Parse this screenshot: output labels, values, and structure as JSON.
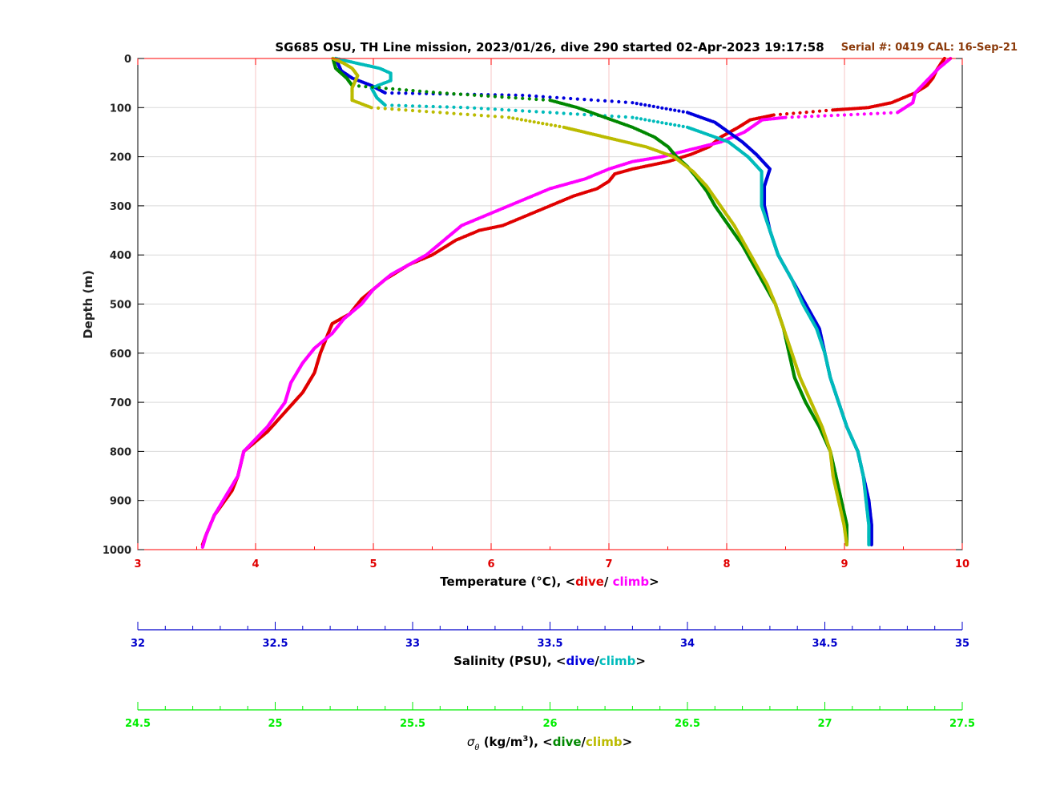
{
  "chart_data": {
    "type": "line",
    "title": "SG685 OSU, TH Line mission, 2023/01/26, dive 290 started 02-Apr-2023 19:17:58",
    "serial_label": "Serial #: 0419  CAL: 16-Sep-21",
    "ylabel": "Depth (m)",
    "ylim": [
      0,
      1000
    ],
    "y_ticks": [
      "0",
      "100",
      "200",
      "300",
      "400",
      "500",
      "600",
      "700",
      "800",
      "900",
      "1000"
    ],
    "grid": true,
    "axes": {
      "temperature": {
        "label": "Temperature (°C), <",
        "dive_label": "dive",
        "sep": "/ ",
        "climb_label": "climb",
        "close": ">",
        "range": [
          3,
          10
        ],
        "ticks": [
          "3",
          "4",
          "5",
          "6",
          "7",
          "8",
          "9",
          "10"
        ],
        "color": "#ff0000"
      },
      "salinity": {
        "label": "Salinity (PSU), <",
        "dive_label": "dive",
        "sep": "/",
        "climb_label": "climb",
        "close": ">",
        "range": [
          32,
          35
        ],
        "ticks": [
          "32",
          "32.5",
          "33",
          "33.5",
          "34",
          "34.5",
          "35"
        ],
        "color": "#0000cc"
      },
      "density": {
        "label_symbol": "σ",
        "label_sub": "θ",
        "label": " (kg/m",
        "label_sup": "3",
        "label_rest": "), <",
        "dive_label": "dive",
        "sep": "/",
        "climb_label": "climb",
        "close": ">",
        "range": [
          24.5,
          27.5
        ],
        "ticks": [
          "24.5",
          "25",
          "25.5",
          "26",
          "26.5",
          "27",
          "27.5"
        ],
        "color": "#00ee00"
      }
    },
    "series": [
      {
        "name": "Temperature dive",
        "axis": "temperature",
        "color": "#e00000",
        "points": [
          [
            9.85,
            0
          ],
          [
            9.82,
            10
          ],
          [
            9.78,
            25
          ],
          [
            9.75,
            40
          ],
          [
            9.7,
            55
          ],
          [
            9.6,
            70
          ],
          [
            9.4,
            90
          ],
          [
            9.2,
            100
          ],
          [
            8.9,
            105
          ],
          [
            8.4,
            115
          ],
          [
            8.2,
            125
          ],
          [
            8.1,
            140
          ],
          [
            7.95,
            160
          ],
          [
            7.85,
            180
          ],
          [
            7.7,
            195
          ],
          [
            7.5,
            210
          ],
          [
            7.2,
            225
          ],
          [
            7.05,
            235
          ],
          [
            7.0,
            250
          ],
          [
            6.9,
            265
          ],
          [
            6.7,
            280
          ],
          [
            6.5,
            300
          ],
          [
            6.3,
            320
          ],
          [
            6.1,
            340
          ],
          [
            5.9,
            350
          ],
          [
            5.7,
            370
          ],
          [
            5.5,
            400
          ],
          [
            5.3,
            420
          ],
          [
            5.1,
            450
          ],
          [
            4.9,
            490
          ],
          [
            4.8,
            520
          ],
          [
            4.65,
            540
          ],
          [
            4.6,
            570
          ],
          [
            4.55,
            600
          ],
          [
            4.5,
            640
          ],
          [
            4.4,
            680
          ],
          [
            4.25,
            720
          ],
          [
            4.1,
            760
          ],
          [
            3.9,
            800
          ],
          [
            3.85,
            850
          ],
          [
            3.8,
            880
          ],
          [
            3.65,
            930
          ],
          [
            3.58,
            970
          ],
          [
            3.55,
            990
          ]
        ]
      },
      {
        "name": "Temperature climb",
        "axis": "temperature",
        "color": "#ff00ff",
        "points": [
          [
            9.9,
            0
          ],
          [
            9.8,
            20
          ],
          [
            9.7,
            45
          ],
          [
            9.6,
            70
          ],
          [
            9.58,
            90
          ],
          [
            9.45,
            110
          ],
          [
            9.0,
            115
          ],
          [
            8.5,
            120
          ],
          [
            8.3,
            125
          ],
          [
            8.15,
            150
          ],
          [
            7.95,
            170
          ],
          [
            7.7,
            185
          ],
          [
            7.45,
            200
          ],
          [
            7.2,
            210
          ],
          [
            7.0,
            225
          ],
          [
            6.8,
            245
          ],
          [
            6.5,
            265
          ],
          [
            6.3,
            285
          ],
          [
            6.1,
            305
          ],
          [
            5.9,
            325
          ],
          [
            5.75,
            340
          ],
          [
            5.6,
            370
          ],
          [
            5.45,
            400
          ],
          [
            5.3,
            420
          ],
          [
            5.15,
            440
          ],
          [
            5.0,
            470
          ],
          [
            4.9,
            500
          ],
          [
            4.75,
            530
          ],
          [
            4.65,
            560
          ],
          [
            4.5,
            590
          ],
          [
            4.4,
            620
          ],
          [
            4.3,
            660
          ],
          [
            4.25,
            700
          ],
          [
            4.1,
            750
          ],
          [
            3.9,
            800
          ],
          [
            3.85,
            850
          ],
          [
            3.75,
            890
          ],
          [
            3.65,
            930
          ],
          [
            3.58,
            970
          ],
          [
            3.55,
            995
          ]
        ]
      },
      {
        "name": "Salinity dive",
        "axis": "salinity",
        "color": "#0000dd",
        "points": [
          [
            32.72,
            0
          ],
          [
            32.74,
            25
          ],
          [
            32.78,
            40
          ],
          [
            32.85,
            55
          ],
          [
            32.9,
            70
          ],
          [
            33.4,
            75
          ],
          [
            33.8,
            90
          ],
          [
            34.0,
            110
          ],
          [
            34.1,
            130
          ],
          [
            34.15,
            150
          ],
          [
            34.2,
            170
          ],
          [
            34.25,
            195
          ],
          [
            34.3,
            225
          ],
          [
            34.28,
            260
          ],
          [
            34.28,
            300
          ],
          [
            34.3,
            350
          ],
          [
            34.33,
            400
          ],
          [
            34.38,
            450
          ],
          [
            34.43,
            500
          ],
          [
            34.48,
            550
          ],
          [
            34.5,
            600
          ],
          [
            34.52,
            650
          ],
          [
            34.55,
            700
          ],
          [
            34.58,
            750
          ],
          [
            34.62,
            800
          ],
          [
            34.64,
            850
          ],
          [
            34.66,
            900
          ],
          [
            34.67,
            950
          ],
          [
            34.67,
            990
          ]
        ]
      },
      {
        "name": "Salinity climb",
        "axis": "salinity",
        "color": "#00bbbb",
        "points": [
          [
            32.72,
            0
          ],
          [
            32.8,
            10
          ],
          [
            32.88,
            20
          ],
          [
            32.92,
            30
          ],
          [
            32.92,
            45
          ],
          [
            32.85,
            60
          ],
          [
            32.87,
            80
          ],
          [
            32.9,
            95
          ],
          [
            33.2,
            100
          ],
          [
            33.5,
            110
          ],
          [
            33.8,
            120
          ],
          [
            34.0,
            140
          ],
          [
            34.15,
            170
          ],
          [
            34.22,
            200
          ],
          [
            34.27,
            230
          ],
          [
            34.27,
            260
          ],
          [
            34.27,
            300
          ],
          [
            34.3,
            350
          ],
          [
            34.33,
            400
          ],
          [
            34.38,
            450
          ],
          [
            34.42,
            500
          ],
          [
            34.47,
            550
          ],
          [
            34.5,
            600
          ],
          [
            34.52,
            650
          ],
          [
            34.55,
            700
          ],
          [
            34.58,
            750
          ],
          [
            34.62,
            800
          ],
          [
            34.64,
            850
          ],
          [
            34.65,
            900
          ],
          [
            34.66,
            950
          ],
          [
            34.66,
            990
          ]
        ]
      },
      {
        "name": "Density dive",
        "axis": "density",
        "color": "#008800",
        "points": [
          [
            25.21,
            0
          ],
          [
            25.22,
            20
          ],
          [
            25.26,
            40
          ],
          [
            25.28,
            55
          ],
          [
            25.6,
            70
          ],
          [
            26.0,
            85
          ],
          [
            26.1,
            100
          ],
          [
            26.2,
            120
          ],
          [
            26.3,
            140
          ],
          [
            26.38,
            160
          ],
          [
            26.43,
            180
          ],
          [
            26.46,
            200
          ],
          [
            26.5,
            220
          ],
          [
            26.53,
            240
          ],
          [
            26.57,
            270
          ],
          [
            26.6,
            300
          ],
          [
            26.65,
            340
          ],
          [
            26.7,
            380
          ],
          [
            26.74,
            420
          ],
          [
            26.78,
            460
          ],
          [
            26.82,
            500
          ],
          [
            26.85,
            550
          ],
          [
            26.87,
            600
          ],
          [
            26.89,
            650
          ],
          [
            26.93,
            700
          ],
          [
            26.98,
            750
          ],
          [
            27.02,
            800
          ],
          [
            27.04,
            850
          ],
          [
            27.06,
            900
          ],
          [
            27.08,
            950
          ],
          [
            27.08,
            990
          ]
        ]
      },
      {
        "name": "Density climb",
        "axis": "density",
        "color": "#bbbb00",
        "points": [
          [
            25.21,
            0
          ],
          [
            25.25,
            10
          ],
          [
            25.28,
            20
          ],
          [
            25.3,
            35
          ],
          [
            25.28,
            60
          ],
          [
            25.28,
            85
          ],
          [
            25.35,
            100
          ],
          [
            25.6,
            110
          ],
          [
            25.85,
            120
          ],
          [
            26.05,
            140
          ],
          [
            26.2,
            160
          ],
          [
            26.35,
            180
          ],
          [
            26.45,
            200
          ],
          [
            26.52,
            230
          ],
          [
            26.57,
            260
          ],
          [
            26.62,
            300
          ],
          [
            26.67,
            340
          ],
          [
            26.71,
            380
          ],
          [
            26.75,
            420
          ],
          [
            26.79,
            460
          ],
          [
            26.82,
            500
          ],
          [
            26.85,
            550
          ],
          [
            26.88,
            600
          ],
          [
            26.91,
            650
          ],
          [
            26.95,
            700
          ],
          [
            26.99,
            750
          ],
          [
            27.02,
            800
          ],
          [
            27.03,
            850
          ],
          [
            27.05,
            900
          ],
          [
            27.07,
            950
          ],
          [
            27.08,
            990
          ]
        ]
      }
    ]
  }
}
